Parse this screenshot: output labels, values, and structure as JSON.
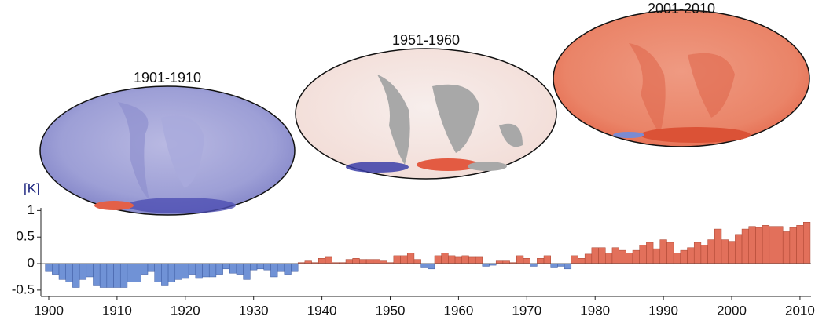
{
  "chart_data": {
    "type": "bar",
    "unit_label": "[K]",
    "maps": [
      {
        "title": "1901-1910"
      },
      {
        "title": "1951-1960"
      },
      {
        "title": "2001-2010"
      }
    ],
    "x": [
      1900,
      1901,
      1902,
      1903,
      1904,
      1905,
      1906,
      1907,
      1908,
      1909,
      1910,
      1911,
      1912,
      1913,
      1914,
      1915,
      1916,
      1917,
      1918,
      1919,
      1920,
      1921,
      1922,
      1923,
      1924,
      1925,
      1926,
      1927,
      1928,
      1929,
      1930,
      1931,
      1932,
      1933,
      1934,
      1935,
      1936,
      1937,
      1938,
      1939,
      1940,
      1941,
      1942,
      1943,
      1944,
      1945,
      1946,
      1947,
      1948,
      1949,
      1950,
      1951,
      1952,
      1953,
      1954,
      1955,
      1956,
      1957,
      1958,
      1959,
      1960,
      1961,
      1962,
      1963,
      1964,
      1965,
      1966,
      1967,
      1968,
      1969,
      1970,
      1971,
      1972,
      1973,
      1974,
      1975,
      1976,
      1977,
      1978,
      1979,
      1980,
      1981,
      1982,
      1983,
      1984,
      1985,
      1986,
      1987,
      1988,
      1989,
      1990,
      1991,
      1992,
      1993,
      1994,
      1995,
      1996,
      1997,
      1998,
      1999,
      2000,
      2001,
      2002,
      2003,
      2004,
      2005,
      2006,
      2007,
      2008,
      2009,
      2010,
      2011
    ],
    "values": [
      -0.15,
      -0.2,
      -0.3,
      -0.35,
      -0.45,
      -0.3,
      -0.25,
      -0.42,
      -0.45,
      -0.45,
      -0.45,
      -0.45,
      -0.35,
      -0.35,
      -0.2,
      -0.15,
      -0.35,
      -0.42,
      -0.35,
      -0.3,
      -0.28,
      -0.2,
      -0.28,
      -0.25,
      -0.25,
      -0.2,
      -0.1,
      -0.18,
      -0.2,
      -0.3,
      -0.12,
      -0.1,
      -0.12,
      -0.25,
      -0.15,
      -0.2,
      -0.15,
      0.02,
      0.05,
      0.02,
      0.1,
      0.12,
      0.02,
      0.02,
      0.08,
      0.1,
      0.08,
      0.08,
      0.08,
      0.05,
      0.02,
      0.15,
      0.15,
      0.2,
      0.08,
      -0.08,
      -0.1,
      0.15,
      0.2,
      0.15,
      0.12,
      0.15,
      0.12,
      0.12,
      -0.05,
      -0.03,
      0.05,
      0.05,
      0.02,
      0.15,
      0.1,
      -0.05,
      0.1,
      0.15,
      -0.08,
      -0.05,
      -0.1,
      0.15,
      0.1,
      0.18,
      0.3,
      0.3,
      0.2,
      0.3,
      0.25,
      0.2,
      0.25,
      0.35,
      0.4,
      0.28,
      0.45,
      0.4,
      0.2,
      0.25,
      0.3,
      0.4,
      0.35,
      0.45,
      0.65,
      0.45,
      0.42,
      0.55,
      0.65,
      0.7,
      0.68,
      0.72,
      0.7,
      0.7,
      0.6,
      0.68,
      0.72,
      0.78
    ],
    "color_negative": "#7092d6",
    "color_positive": "#e2705b",
    "xlim": [
      1898.85,
      2011.62
    ],
    "xticks": [
      1900,
      1910,
      1920,
      1930,
      1940,
      1950,
      1960,
      1970,
      1980,
      1990,
      2000,
      2010
    ],
    "ylim": [
      -0.62,
      1.05
    ],
    "yticks": [
      -0.5,
      0,
      0.5,
      1
    ]
  }
}
